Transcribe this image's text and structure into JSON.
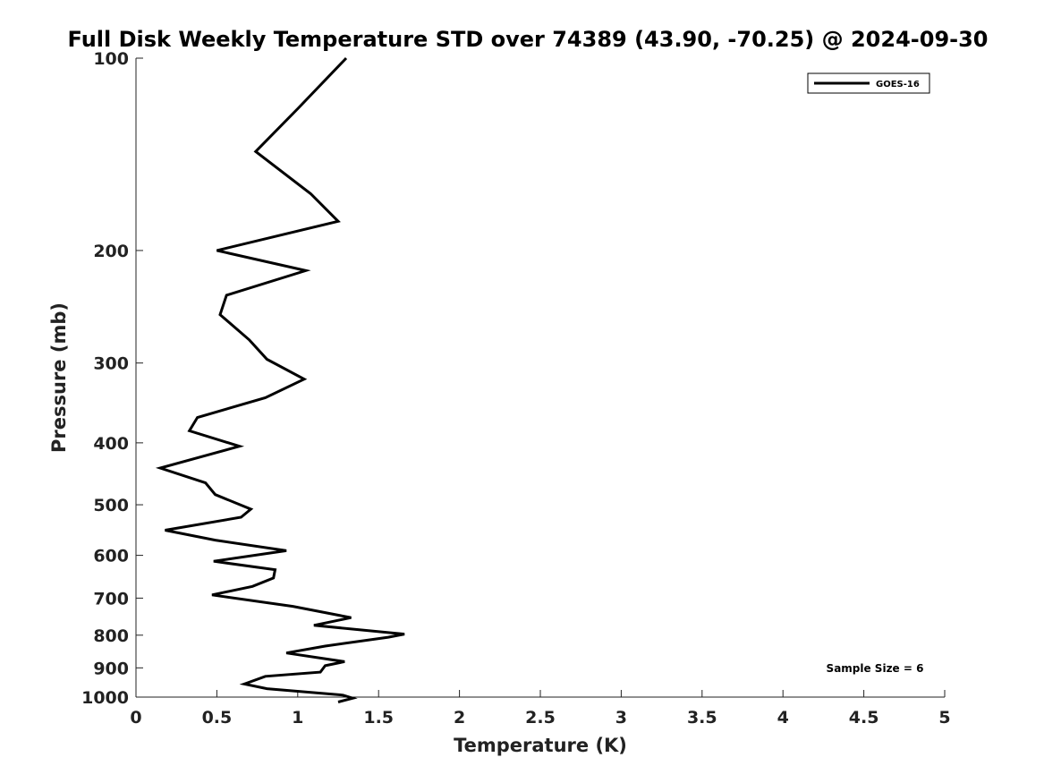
{
  "chart_data": {
    "type": "line",
    "title": "Full Disk Weekly Temperature STD over 74389 (43.90, -70.25) @ 2024-09-30",
    "xlabel": "Temperature (K)",
    "ylabel": "Pressure (mb)",
    "xlim": [
      0,
      5
    ],
    "ylim": [
      100,
      1000
    ],
    "y_scale": "log",
    "y_reversed": true,
    "grid": false,
    "legend_position": "top-right",
    "x_ticks": [
      0,
      0.5,
      1,
      1.5,
      2,
      2.5,
      3,
      3.5,
      4,
      4.5,
      5
    ],
    "x_tick_labels": [
      "0",
      "0.5",
      "1",
      "1.5",
      "2",
      "2.5",
      "3",
      "3.5",
      "4",
      "4.5",
      "5"
    ],
    "y_ticks": [
      100,
      200,
      300,
      400,
      500,
      600,
      700,
      800,
      900,
      1000
    ],
    "y_tick_labels": [
      "100",
      "200",
      "300",
      "400",
      "500",
      "600",
      "700",
      "800",
      "900",
      "1000"
    ],
    "color": "#000000",
    "series": [
      {
        "name": "GOES-16",
        "x": [
          1.3,
          1.0,
          0.74,
          1.08,
          1.25,
          0.5,
          1.05,
          0.56,
          0.52,
          0.7,
          0.81,
          1.04,
          0.8,
          0.38,
          0.33,
          0.64,
          0.15,
          0.43,
          0.49,
          0.71,
          0.65,
          0.18,
          0.49,
          0.93,
          0.48,
          0.86,
          0.85,
          0.72,
          0.47,
          0.97,
          1.33,
          1.1,
          1.66,
          1.56,
          1.17,
          0.93,
          1.29,
          1.17,
          1.14,
          0.8,
          0.67,
          0.81,
          1.28,
          1.34,
          1.25
        ],
        "y": [
          100,
          120,
          140,
          163,
          180,
          200,
          215,
          235,
          252,
          276,
          296,
          318,
          340,
          365,
          383,
          405,
          438,
          462,
          482,
          508,
          523,
          548,
          568,
          590,
          613,
          632,
          651,
          671,
          692,
          721,
          751,
          772,
          797,
          806,
          832,
          853,
          880,
          893,
          914,
          928,
          954,
          970,
          993,
          1004,
          1018
        ]
      }
    ],
    "annotation": "Sample Size = 6"
  }
}
